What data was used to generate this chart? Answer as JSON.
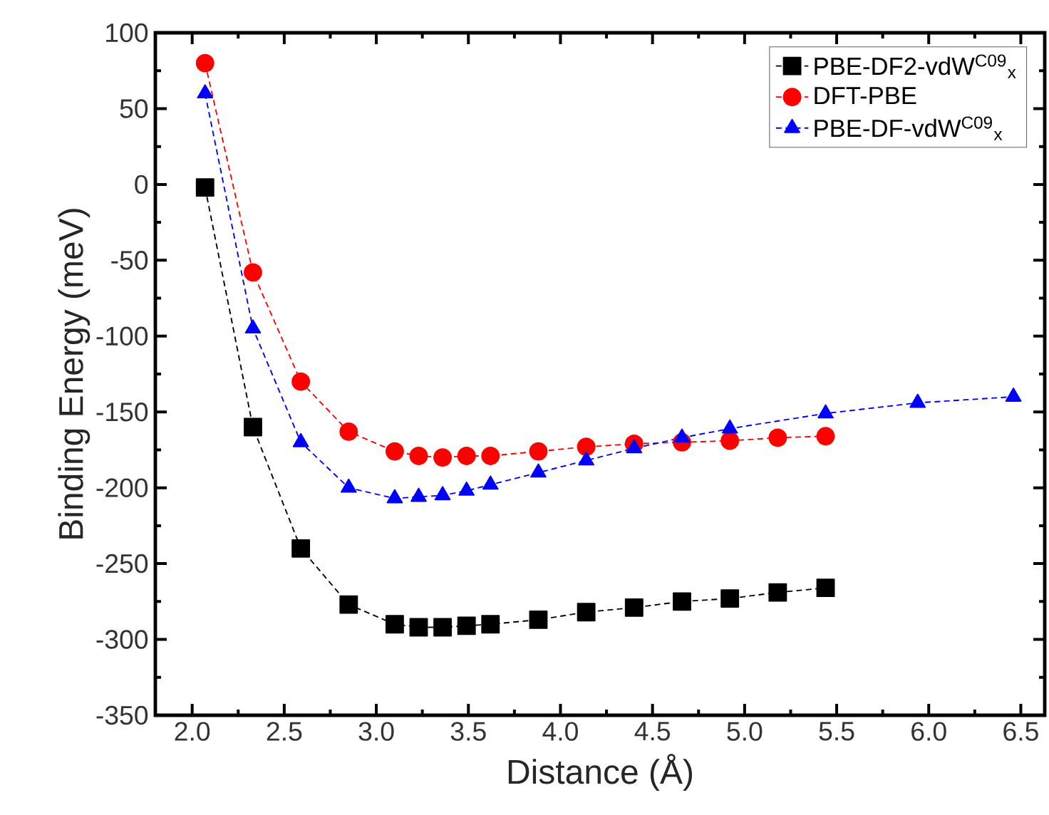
{
  "chart_data": {
    "type": "line",
    "xlabel": "Distance (Å)",
    "ylabel": "Binding Energy (meV)",
    "xlim": [
      1.8,
      6.63
    ],
    "ylim": [
      -350,
      100
    ],
    "xticks": [
      {
        "value": 2,
        "label": "2.0"
      },
      {
        "value": 2.5,
        "label": "2.5"
      },
      {
        "value": 3,
        "label": "3.0"
      },
      {
        "value": 3.5,
        "label": "3.5"
      },
      {
        "value": 4,
        "label": "4.0"
      },
      {
        "value": 4.5,
        "label": "4.5"
      },
      {
        "value": 5,
        "label": "5.0"
      },
      {
        "value": 5.5,
        "label": "5.5"
      },
      {
        "value": 6,
        "label": "6.0"
      },
      {
        "value": 6.5,
        "label": "6.5"
      }
    ],
    "yticks": [
      -350,
      -300,
      -250,
      -200,
      -150,
      -100,
      -50,
      0,
      50,
      100
    ],
    "grid": false,
    "legend": "top right",
    "line_style": "dashed",
    "series": [
      {
        "name": "PBE-DF2-vdW$^{C09}$$_{x}$",
        "color": "#000000",
        "marker": "square",
        "x": [
          2.07,
          2.33,
          2.59,
          2.85,
          3.1,
          3.23,
          3.36,
          3.49,
          3.62,
          3.88,
          4.14,
          4.4,
          4.66,
          4.92,
          5.18,
          5.44
        ],
        "values": [
          -2,
          -160,
          -240,
          -277,
          -290,
          -292,
          -292,
          -291,
          -290,
          -287,
          -282,
          -279,
          -275,
          -273,
          -269,
          -266
        ]
      },
      {
        "name": "DFT-PBE",
        "color": "#ff0000",
        "marker": "circle",
        "x": [
          2.07,
          2.33,
          2.59,
          2.85,
          3.1,
          3.23,
          3.36,
          3.49,
          3.62,
          3.88,
          4.14,
          4.4,
          4.66,
          4.92,
          5.18,
          5.44
        ],
        "values": [
          80,
          -58,
          -130,
          -163,
          -176,
          -179,
          -180,
          -179,
          -179,
          -176,
          -173,
          -171,
          -170,
          -169,
          -167,
          -166
        ]
      },
      {
        "name": "PBE-DF-vdW$^{C09}$$_{x}$",
        "color": "#0000ff",
        "marker": "triangle",
        "x": [
          2.07,
          2.33,
          2.59,
          2.85,
          3.1,
          3.23,
          3.36,
          3.49,
          3.62,
          3.88,
          4.14,
          4.4,
          4.66,
          4.92,
          5.44,
          5.94,
          6.46
        ],
        "values": [
          60,
          -95,
          -170,
          -200,
          -207,
          -206,
          -205,
          -202,
          -198,
          -190,
          -182,
          -174,
          -167,
          -161,
          -151,
          -144,
          -140
        ]
      }
    ]
  }
}
